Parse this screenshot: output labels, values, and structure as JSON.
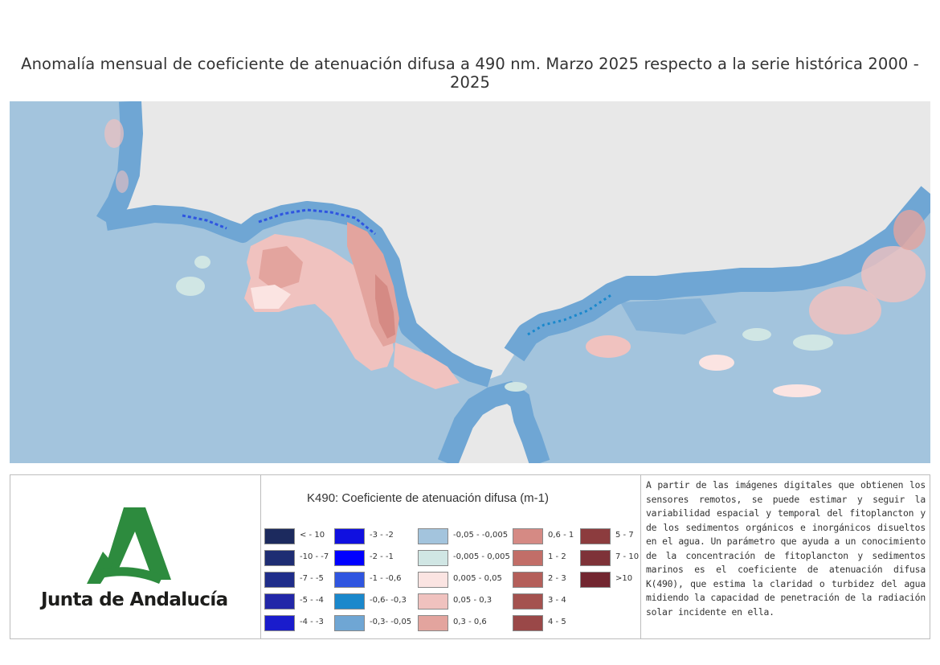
{
  "title": "Anomalía mensual de coeficiente de atenuación difusa a 490 nm. Marzo 2025 respecto a la serie histórica 2000 - 2025",
  "logo": {
    "text": "Junta de Andalucía",
    "color": "#2d8b3e"
  },
  "legend": {
    "title": "K490: Coeficiente de atenuación difusa (m-1)",
    "columns": [
      [
        {
          "label": "< - 10",
          "color": "#1c2a5e"
        },
        {
          "label": "-10 - -7",
          "color": "#1e2d73"
        },
        {
          "label": "-7 - -5",
          "color": "#1f2d8a"
        },
        {
          "label": "-5 - -4",
          "color": "#2227a8"
        },
        {
          "label": "-4 - -3",
          "color": "#1a1ccc"
        }
      ],
      [
        {
          "label": "-3 - -2",
          "color": "#1010e0"
        },
        {
          "label": "-2 - -1",
          "color": "#0000ff"
        },
        {
          "label": "-1 - -0,6",
          "color": "#2f55e0"
        },
        {
          "label": "-0,6- -0,3",
          "color": "#1a88cc"
        },
        {
          "label": "-0,3- -0,05",
          "color": "#6fa6d4"
        }
      ],
      [
        {
          "label": "-0,05 - -0,005",
          "color": "#a3c4dd"
        },
        {
          "label": "-0,005 - 0,005",
          "color": "#d0e6e4"
        },
        {
          "label": "0,005 - 0,05",
          "color": "#fbe4e2"
        },
        {
          "label": "0,05 - 0,3",
          "color": "#f0c2bf"
        },
        {
          "label": "0,3 - 0,6",
          "color": "#e3a49e"
        }
      ],
      [
        {
          "label": "0,6 - 1",
          "color": "#d58a84"
        },
        {
          "label": "1 - 2",
          "color": "#c26e68"
        },
        {
          "label": "2 - 3",
          "color": "#b45f5a"
        },
        {
          "label": "3 - 4",
          "color": "#a4524f"
        },
        {
          "label": "4 - 5",
          "color": "#9a4848"
        }
      ],
      [
        {
          "label": "5 - 7",
          "color": "#8c3c3e"
        },
        {
          "label": "7 - 10",
          "color": "#7e3238"
        },
        {
          "label": ">10",
          "color": "#722630"
        }
      ]
    ]
  },
  "description": "A partir de las imágenes digitales que obtienen los sensores remotos, se puede estimar y seguir la variabilidad espacial y temporal del fitoplancton y de los sedimentos orgánicos e inorgánicos disueltos en el agua. Un parámetro que ayuda a un conocimiento de la concentración de fitoplancton y sedimentos marinos es el coeficiente de atenuación difusa K(490), que estima la claridad o turbidez del agua midiendo la capacidad de penetración de la radiación solar incidente en ella.",
  "map_colors": {
    "land": "#e8e8e8",
    "sea": "#a3c4dd",
    "coastal": "#6fa6d4",
    "anomaly_pos": "#f0c2bf",
    "anomaly_strong": "#d58a84"
  }
}
